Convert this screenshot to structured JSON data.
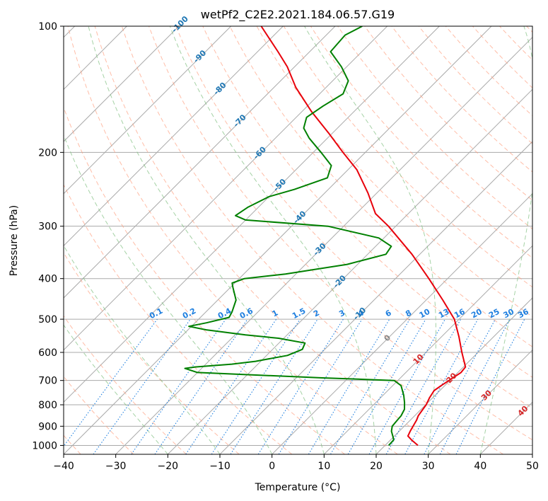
{
  "chart_data": {
    "type": "line",
    "title": "wetPf2_C2E2.2021.184.06.57.G19",
    "xlabel": "Temperature (°C)",
    "ylabel": "Pressure (hPa)",
    "xlim": [
      -40,
      50
    ],
    "ylim": [
      1050,
      100
    ],
    "x_ticks": [
      -40,
      -30,
      -20,
      -10,
      0,
      10,
      20,
      30,
      40,
      50
    ],
    "x_tick_labels": [
      "−40",
      "−30",
      "−20",
      "−10",
      "0",
      "10",
      "20",
      "30",
      "40",
      "50"
    ],
    "y_ticks": [
      100,
      200,
      300,
      400,
      500,
      600,
      700,
      800,
      900,
      1000
    ],
    "y_tick_labels": [
      "100",
      "200",
      "300",
      "400",
      "500",
      "600",
      "700",
      "800",
      "900",
      "1000"
    ],
    "skew": 1.0,
    "colors": {
      "temperature": "#e8000b",
      "dewpoint": "#008000",
      "isotherm": "#aaaaaa",
      "dry_adiabat": "#ff9a78",
      "moist_adiabat": "#7fbf7f",
      "mixing_ratio": "#1f7fdf",
      "isotherm_label_cold": "#1f77b4",
      "isotherm_label_zero": "#888888",
      "isotherm_label_warm": "#d62728",
      "lcl_curve": "#c8a57a"
    },
    "series": [
      {
        "name": "Temperature",
        "points": [
          [
            1000,
            26.3
          ],
          [
            970,
            24.0
          ],
          [
            950,
            22.6
          ],
          [
            925,
            22.1
          ],
          [
            900,
            21.7
          ],
          [
            870,
            21.2
          ],
          [
            850,
            20.7
          ],
          [
            800,
            20.1
          ],
          [
            770,
            19.4
          ],
          [
            740,
            18.9
          ],
          [
            720,
            19.3
          ],
          [
            700,
            19.8
          ],
          [
            670,
            20.6
          ],
          [
            650,
            20.4
          ],
          [
            600,
            16.9
          ],
          [
            550,
            13.3
          ],
          [
            500,
            9.1
          ],
          [
            450,
            3.2
          ],
          [
            400,
            -3.6
          ],
          [
            350,
            -11.5
          ],
          [
            300,
            -21.4
          ],
          [
            280,
            -26.3
          ],
          [
            250,
            -31.7
          ],
          [
            220,
            -38.3
          ],
          [
            200,
            -44.3
          ],
          [
            180,
            -50.7
          ],
          [
            160,
            -58.1
          ],
          [
            140,
            -65.8
          ],
          [
            125,
            -71.4
          ],
          [
            115,
            -76.1
          ],
          [
            100,
            -84.2
          ]
        ]
      },
      {
        "name": "Dewpoint",
        "points": [
          [
            1000,
            20.7
          ],
          [
            970,
            20.6
          ],
          [
            950,
            19.7
          ],
          [
            925,
            18.5
          ],
          [
            900,
            17.7
          ],
          [
            870,
            17.5
          ],
          [
            850,
            17.4
          ],
          [
            820,
            16.8
          ],
          [
            790,
            15.5
          ],
          [
            760,
            14.0
          ],
          [
            720,
            11.6
          ],
          [
            700,
            9.3
          ],
          [
            690,
            -5.0
          ],
          [
            670,
            -30.0
          ],
          [
            655,
            -33.2
          ],
          [
            650,
            -31.5
          ],
          [
            640,
            -25.0
          ],
          [
            630,
            -21.0
          ],
          [
            610,
            -16.0
          ],
          [
            590,
            -14.3
          ],
          [
            570,
            -15.0
          ],
          [
            555,
            -21.0
          ],
          [
            545,
            -28.0
          ],
          [
            530,
            -36.5
          ],
          [
            520,
            -40.5
          ],
          [
            510,
            -37.8
          ],
          [
            495,
            -34.5
          ],
          [
            480,
            -35.0
          ],
          [
            450,
            -36.5
          ],
          [
            420,
            -39.5
          ],
          [
            410,
            -40.5
          ],
          [
            400,
            -39.0
          ],
          [
            390,
            -32.0
          ],
          [
            370,
            -22.0
          ],
          [
            350,
            -16.5
          ],
          [
            335,
            -17.0
          ],
          [
            320,
            -21.0
          ],
          [
            300,
            -33.0
          ],
          [
            290,
            -50.0
          ],
          [
            283,
            -52.8
          ],
          [
            270,
            -52.0
          ],
          [
            255,
            -50.0
          ],
          [
            245,
            -46.5
          ],
          [
            230,
            -42.4
          ],
          [
            215,
            -44.0
          ],
          [
            200,
            -48.5
          ],
          [
            185,
            -53.5
          ],
          [
            175,
            -56.5
          ],
          [
            165,
            -58.0
          ],
          [
            155,
            -57.0
          ],
          [
            145,
            -55.5
          ],
          [
            135,
            -57.0
          ],
          [
            125,
            -61.0
          ],
          [
            115,
            -66.0
          ],
          [
            105,
            -66.4
          ],
          [
            100,
            -64.8
          ]
        ]
      }
    ],
    "isotherm_labels": [
      {
        "t": -100,
        "label": "-100"
      },
      {
        "t": -90,
        "label": "-90"
      },
      {
        "t": -80,
        "label": "-80"
      },
      {
        "t": -70,
        "label": "-70"
      },
      {
        "t": -60,
        "label": "-60"
      },
      {
        "t": -50,
        "label": "-50"
      },
      {
        "t": -40,
        "label": "-40"
      },
      {
        "t": -30,
        "label": "-30"
      },
      {
        "t": -20,
        "label": "-20"
      },
      {
        "t": -10,
        "label": "-10"
      },
      {
        "t": 0,
        "label": "0"
      },
      {
        "t": 10,
        "label": "10"
      },
      {
        "t": 20,
        "label": "20"
      },
      {
        "t": 30,
        "label": "30"
      },
      {
        "t": 40,
        "label": "40"
      }
    ],
    "mixing_ratios": [
      {
        "w": 0.1,
        "label": "0.1"
      },
      {
        "w": 0.2,
        "label": "0.2"
      },
      {
        "w": 0.4,
        "label": "0.4"
      },
      {
        "w": 0.6,
        "label": "0.6"
      },
      {
        "w": 1,
        "label": "1"
      },
      {
        "w": 1.5,
        "label": "1.5"
      },
      {
        "w": 2,
        "label": "2"
      },
      {
        "w": 3,
        "label": "3"
      },
      {
        "w": 4,
        "label": "4"
      },
      {
        "w": 6,
        "label": "6"
      },
      {
        "w": 8,
        "label": "8"
      },
      {
        "w": 10,
        "label": "10"
      },
      {
        "w": 13,
        "label": "13"
      },
      {
        "w": 16,
        "label": "16"
      },
      {
        "w": 20,
        "label": "20"
      },
      {
        "w": 25,
        "label": "25"
      },
      {
        "w": 30,
        "label": "30"
      },
      {
        "w": 36,
        "label": "36"
      }
    ],
    "mixing_ratio_label_pressure": 500,
    "dry_adiabats_theta_c": [
      -40,
      -30,
      -20,
      -10,
      0,
      10,
      20,
      30,
      40,
      50,
      60,
      70,
      80,
      90,
      100,
      110,
      120,
      130,
      140,
      150,
      160,
      170,
      180,
      190,
      200,
      210,
      220,
      230,
      240,
      250
    ],
    "moist_adiabats_start_c": [
      -20,
      -10,
      0,
      10,
      20,
      30,
      40
    ]
  }
}
